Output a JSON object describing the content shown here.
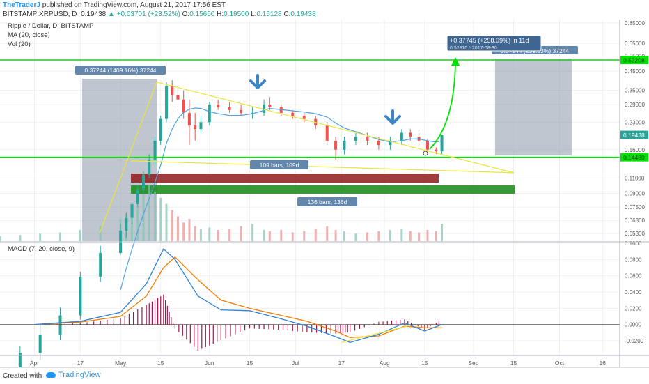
{
  "header": {
    "author": "TheTraderJ",
    "published": "published on TradingView.com, August 21, 2017 17:56 EST",
    "symbol": "BITSTAMP:XRPUSD, D",
    "last": "0.19438",
    "change": "+0.03701 (+23.52%)",
    "open_label": "O:",
    "open": "0.15650",
    "high_label": "H:",
    "high": "0.19500",
    "low_label": "L:",
    "low": "0.15128",
    "close_label": "C:",
    "close": "0.19438"
  },
  "legend": {
    "title": "Ripple / Dollar, D, BITSTAMP",
    "ma": "MA (20, close)",
    "vol": "Vol (20)",
    "macd": "MACD (7, 20, close, 9)"
  },
  "footer": {
    "created": "Created with",
    "brand": "TradingView"
  },
  "annotations": {
    "range_left": "0.37244 (1409.16%) 37244",
    "target_line1": "+0.37745 (+258.09%) in 11d",
    "target_line2": "0.52370  *  2017-08-30",
    "range_right": "0.37244 (259.53%) 37244",
    "bars1": "109 bars, 109d",
    "bars2": "136 bars, 136d"
  },
  "colors": {
    "up": "#26a69a",
    "down": "#ef5350",
    "green_line": "#00e400",
    "yellow_line": "#e9e63a",
    "ma": "#4fa3e6",
    "macd": "#2f80d4",
    "signal": "#f57c00",
    "hist": "#a0164d",
    "axis_bg": "#ffffff"
  },
  "chart_data": {
    "type": "candlestick",
    "price_axis": {
      "scale": "log",
      "ticks": [
        0.85,
        0.65,
        0.55,
        0.45,
        0.35,
        0.29,
        0.23,
        0.16,
        0.11,
        0.09,
        0.075,
        0.063,
        0.053
      ],
      "tick_labels": [
        "0.85000",
        "0.65000",
        "0.55000",
        "0.45000",
        "0.35000",
        "0.29000",
        "0.23000",
        "0.16000",
        "0.11000",
        "0.09000",
        "0.07500",
        "0.06300",
        "0.05300"
      ]
    },
    "macd_axis": {
      "ticks": [
        0.1,
        0.08,
        0.06,
        0.04,
        0.02,
        -0.02
      ],
      "tick_labels": [
        "0.1000",
        "0.0800",
        "0.0600",
        "0.0400",
        "0.0200",
        "-0.0200"
      ],
      "zero_label": "-0.0000",
      "range": [
        -0.03,
        0.1
      ]
    },
    "x_axis": {
      "ticks": [
        "Apr",
        "17",
        "May",
        "15",
        "Jun",
        "15",
        "Jul",
        "17",
        "Aug",
        "15",
        "Sep",
        "15",
        "Oct",
        "16"
      ],
      "start": "2017-03-20",
      "end": "2017-10-22"
    },
    "price_labels": {
      "target": "0.52208",
      "last": "0.19438",
      "support": "0.14480"
    },
    "levels": [
      0.52208,
      0.1448
    ],
    "ohlc": [
      [
        "2017-03-20",
        0.0068,
        0.0075,
        0.0062,
        0.007
      ],
      [
        "2017-03-27",
        0.007,
        0.012,
        0.0066,
        0.011
      ],
      [
        "2017-04-03",
        0.011,
        0.016,
        0.01,
        0.014
      ],
      [
        "2017-04-10",
        0.014,
        0.02,
        0.013,
        0.018
      ],
      [
        "2017-04-17",
        0.018,
        0.032,
        0.017,
        0.03
      ],
      [
        "2017-04-24",
        0.03,
        0.045,
        0.028,
        0.041
      ],
      [
        "2017-05-01",
        0.041,
        0.06,
        0.04,
        0.055
      ],
      [
        "2017-05-03",
        0.055,
        0.07,
        0.05,
        0.065
      ],
      [
        "2017-05-05",
        0.065,
        0.08,
        0.06,
        0.078
      ],
      [
        "2017-05-07",
        0.078,
        0.1,
        0.075,
        0.095
      ],
      [
        "2017-05-09",
        0.095,
        0.12,
        0.09,
        0.115
      ],
      [
        "2017-05-11",
        0.115,
        0.15,
        0.11,
        0.14
      ],
      [
        "2017-05-13",
        0.14,
        0.19,
        0.13,
        0.18
      ],
      [
        "2017-05-15",
        0.18,
        0.25,
        0.17,
        0.24
      ],
      [
        "2017-05-17",
        0.24,
        0.39,
        0.23,
        0.37
      ],
      [
        "2017-05-19",
        0.37,
        0.4,
        0.3,
        0.33
      ],
      [
        "2017-05-21",
        0.33,
        0.37,
        0.28,
        0.31
      ],
      [
        "2017-05-23",
        0.31,
        0.35,
        0.24,
        0.26
      ],
      [
        "2017-05-25",
        0.26,
        0.31,
        0.17,
        0.22
      ],
      [
        "2017-05-27",
        0.22,
        0.26,
        0.18,
        0.21
      ],
      [
        "2017-05-29",
        0.21,
        0.25,
        0.2,
        0.23
      ],
      [
        "2017-06-01",
        0.23,
        0.3,
        0.22,
        0.29
      ],
      [
        "2017-06-04",
        0.29,
        0.31,
        0.27,
        0.28
      ],
      [
        "2017-06-08",
        0.28,
        0.3,
        0.26,
        0.27
      ],
      [
        "2017-06-12",
        0.27,
        0.29,
        0.25,
        0.26
      ],
      [
        "2017-06-16",
        0.26,
        0.28,
        0.24,
        0.26
      ],
      [
        "2017-06-20",
        0.26,
        0.31,
        0.25,
        0.29
      ],
      [
        "2017-06-22",
        0.29,
        0.32,
        0.27,
        0.28
      ],
      [
        "2017-06-26",
        0.28,
        0.29,
        0.25,
        0.26
      ],
      [
        "2017-06-30",
        0.26,
        0.27,
        0.24,
        0.25
      ],
      [
        "2017-07-04",
        0.25,
        0.26,
        0.23,
        0.24
      ],
      [
        "2017-07-08",
        0.24,
        0.25,
        0.21,
        0.22
      ],
      [
        "2017-07-12",
        0.22,
        0.23,
        0.17,
        0.18
      ],
      [
        "2017-07-15",
        0.18,
        0.19,
        0.14,
        0.16
      ],
      [
        "2017-07-18",
        0.16,
        0.19,
        0.15,
        0.18
      ],
      [
        "2017-07-22",
        0.18,
        0.2,
        0.17,
        0.19
      ],
      [
        "2017-07-26",
        0.19,
        0.2,
        0.17,
        0.18
      ],
      [
        "2017-07-30",
        0.18,
        0.19,
        0.16,
        0.17
      ],
      [
        "2017-08-03",
        0.17,
        0.19,
        0.16,
        0.18
      ],
      [
        "2017-08-07",
        0.18,
        0.21,
        0.17,
        0.2
      ],
      [
        "2017-08-10",
        0.2,
        0.21,
        0.18,
        0.19
      ],
      [
        "2017-08-13",
        0.19,
        0.2,
        0.17,
        0.18
      ],
      [
        "2017-08-16",
        0.18,
        0.185,
        0.155,
        0.16
      ],
      [
        "2017-08-19",
        0.16,
        0.165,
        0.151,
        0.157
      ],
      [
        "2017-08-21",
        0.1565,
        0.195,
        0.15128,
        0.19438
      ]
    ],
    "volume": [
      4,
      5,
      6,
      7,
      9,
      12,
      18,
      22,
      30,
      28,
      38,
      45,
      40,
      35,
      30,
      25,
      20,
      15,
      18,
      12,
      10,
      11,
      9,
      10,
      12,
      14,
      9,
      8,
      9,
      7,
      8,
      10,
      12,
      9,
      8,
      6,
      7,
      8,
      9,
      10,
      8,
      7,
      9,
      8,
      14
    ],
    "macd": {
      "x": [
        "2017-04-01",
        "2017-04-17",
        "2017-05-01",
        "2017-05-10",
        "2017-05-16",
        "2017-05-20",
        "2017-05-28",
        "2017-06-05",
        "2017-06-15",
        "2017-06-25",
        "2017-07-05",
        "2017-07-15",
        "2017-07-20",
        "2017-07-30",
        "2017-08-08",
        "2017-08-15",
        "2017-08-21"
      ],
      "macd": [
        0.0,
        0.004,
        0.015,
        0.05,
        0.093,
        0.08,
        0.035,
        0.018,
        0.017,
        0.008,
        -0.002,
        -0.015,
        -0.022,
        -0.012,
        0.002,
        -0.008,
        0.0
      ],
      "signal": [
        0.0,
        0.003,
        0.01,
        0.035,
        0.07,
        0.083,
        0.055,
        0.03,
        0.02,
        0.012,
        0.004,
        -0.008,
        -0.016,
        -0.014,
        -0.002,
        -0.004,
        -0.004
      ]
    }
  }
}
